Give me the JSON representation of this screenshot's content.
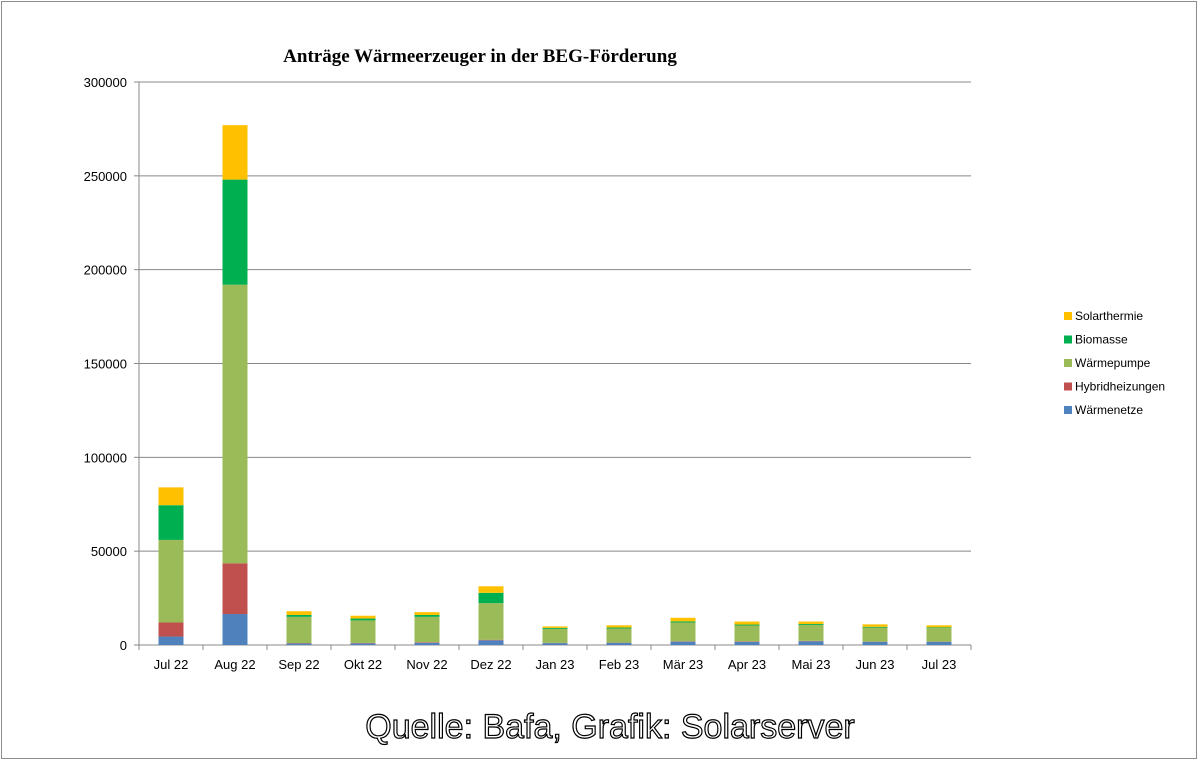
{
  "chart_data": {
    "type": "bar",
    "stacked": true,
    "title": "Anträge Wärmeerzeuger in der  BEG-Förderung",
    "xlabel": "",
    "ylabel": "",
    "ylim": [
      0,
      300000
    ],
    "yticks": [
      0,
      50000,
      100000,
      150000,
      200000,
      250000,
      300000
    ],
    "grid": true,
    "legend_position": "right",
    "categories": [
      "Jul 22",
      "Aug 22",
      "Sep 22",
      "Okt 22",
      "Nov 22",
      "Dez 22",
      "Jan 23",
      "Feb 23",
      "Mär 23",
      "Apr 23",
      "Mai 23",
      "Jun 23",
      "Jul 23"
    ],
    "series": [
      {
        "name": "Wärmenetze",
        "color": "#4f81bd",
        "values": [
          4500,
          16500,
          800,
          900,
          1200,
          2500,
          1000,
          1200,
          1800,
          1700,
          2000,
          1700,
          1700
        ]
      },
      {
        "name": "Hybridheizungen",
        "color": "#c0504d",
        "values": [
          7500,
          27000,
          200,
          200,
          300,
          300,
          100,
          100,
          200,
          200,
          200,
          100,
          100
        ]
      },
      {
        "name": "Wärmepumpe",
        "color": "#9bbb59",
        "values": [
          44000,
          148500,
          14000,
          12000,
          13500,
          19500,
          7500,
          7500,
          10000,
          8500,
          8500,
          7500,
          7200
        ]
      },
      {
        "name": "Biomasse",
        "color": "#00b050",
        "values": [
          18500,
          56000,
          1000,
          1000,
          1000,
          5500,
          500,
          500,
          600,
          500,
          500,
          400,
          400
        ]
      },
      {
        "name": "Solarthermie",
        "color": "#ffc000",
        "values": [
          9500,
          29000,
          2000,
          1500,
          1500,
          3500,
          800,
          1200,
          1900,
          1600,
          1300,
          1300,
          1100
        ]
      }
    ],
    "legend_order": [
      "Solarthermie",
      "Biomasse",
      "Wärmepumpe",
      "Hybridheizungen",
      "Wärmenetze"
    ]
  },
  "source_note": "Quelle: Bafa, Grafik: Solarserver",
  "colors": {
    "grid": "#888888",
    "axis": "#888888",
    "background": "#ffffff"
  }
}
